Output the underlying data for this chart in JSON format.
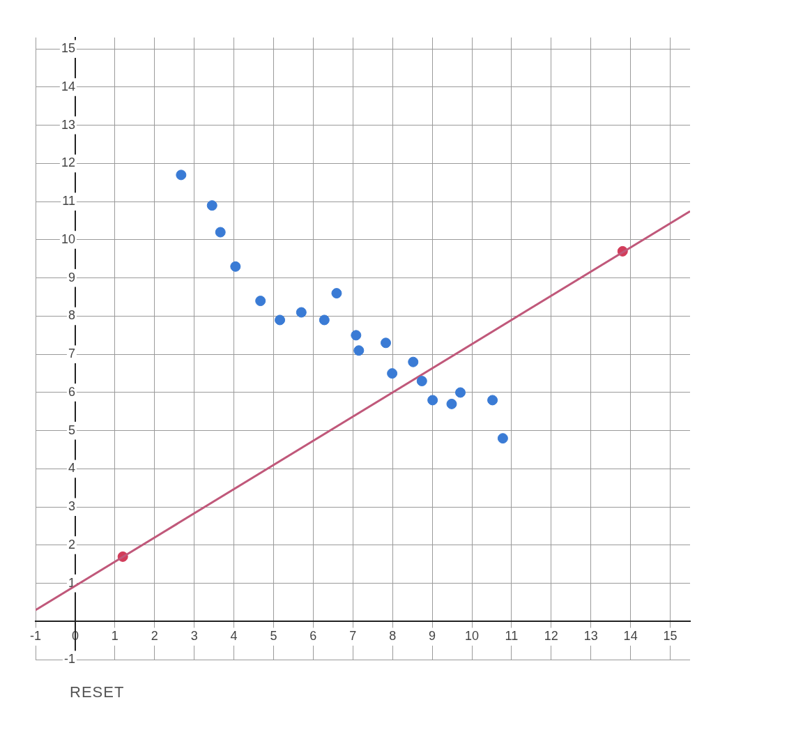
{
  "chart_data": {
    "type": "scatter",
    "series": [
      {
        "color": "#3a7bd5",
        "x": [
          2.67,
          3.45,
          3.66,
          4.04,
          4.67,
          5.16,
          5.7,
          6.28,
          6.59,
          7.08,
          7.15,
          7.83,
          7.99,
          8.52,
          8.74,
          9.01,
          9.49,
          9.71,
          10.52,
          10.78
        ],
        "values": [
          11.7,
          10.9,
          10.2,
          9.3,
          8.4,
          7.9,
          8.1,
          7.9,
          8.6,
          7.5,
          7.1,
          7.3,
          6.5,
          6.8,
          6.3,
          5.8,
          5.7,
          6.0,
          5.8,
          4.8
        ],
        "marker": "circle"
      },
      {
        "type": "line",
        "color": "#c0587a",
        "x": [
          -1,
          15.5
        ],
        "values": [
          0.3,
          10.75
        ],
        "marker": "none",
        "line_style": "solid"
      },
      {
        "type": "scatter",
        "color": "#d23c5a",
        "x": [
          1.2,
          13.8
        ],
        "values": [
          1.7,
          9.7
        ],
        "marker": "circle"
      }
    ],
    "xlim": [
      -1,
      15.5
    ],
    "ylim": [
      -1,
      15.3
    ],
    "xticks": [
      -1,
      0,
      1,
      2,
      3,
      4,
      5,
      6,
      7,
      8,
      9,
      10,
      11,
      12,
      13,
      14,
      15
    ],
    "yticks": [
      -1,
      1,
      2,
      3,
      4,
      5,
      6,
      7,
      8,
      9,
      10,
      11,
      12,
      13,
      14,
      15
    ],
    "grid": true,
    "legend": false,
    "annotations": [
      "RESET"
    ]
  }
}
